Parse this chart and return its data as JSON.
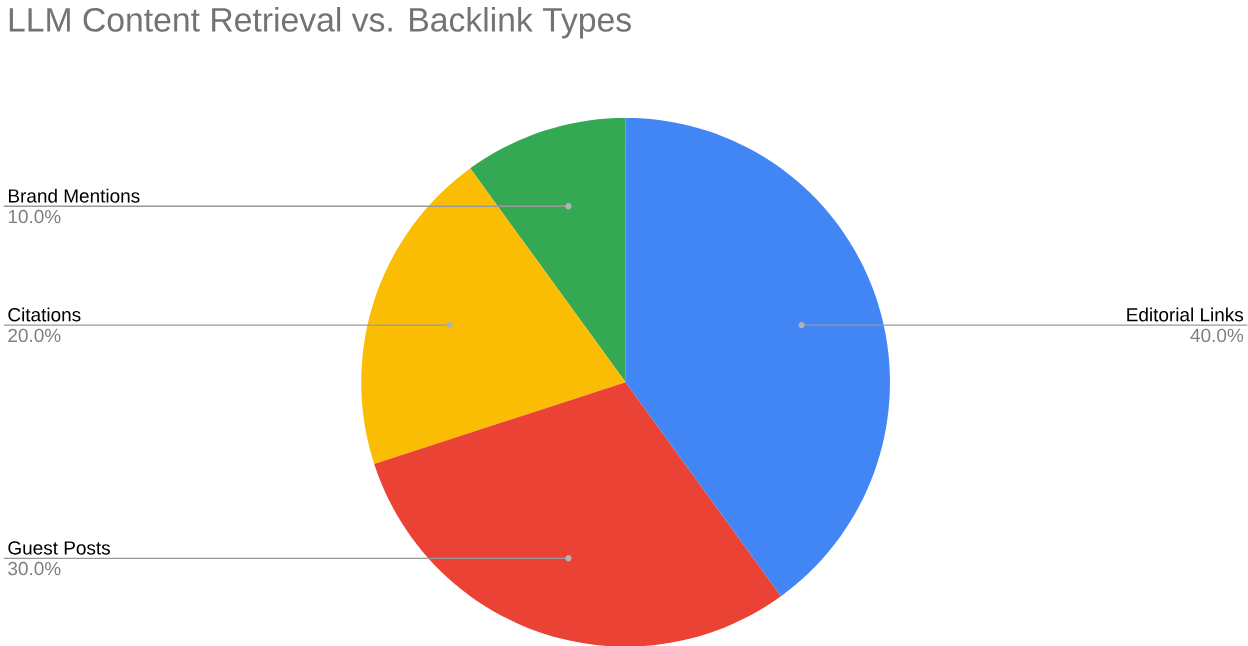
{
  "chart_data": {
    "type": "pie",
    "title": "LLM Content Retrieval  vs. Backlink Types",
    "categories": [
      "Editorial Links",
      "Guest Posts",
      "Citations",
      "Brand Mentions"
    ],
    "values": [
      40,
      30,
      20,
      10
    ],
    "colors": [
      "#4285f4",
      "#ea4335",
      "#fbbc04",
      "#34a853"
    ],
    "value_labels": [
      "40.0%",
      "30.0%",
      "20.0%",
      "10.0%"
    ]
  }
}
